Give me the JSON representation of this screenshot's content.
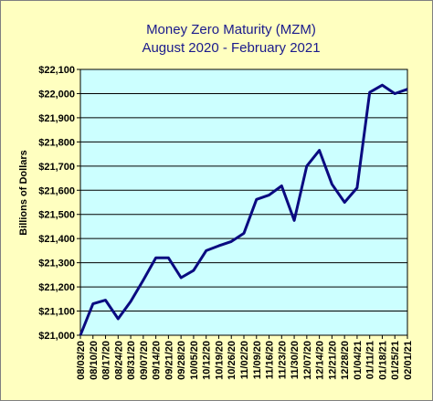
{
  "chart_data": {
    "type": "line",
    "title": "Money Zero Maturity (MZM)",
    "subtitle": "August  2020 - February 2021",
    "xlabel": "",
    "ylabel": "Billions of Dollars",
    "ylim": [
      21000,
      22100
    ],
    "y_ticks": [
      "$21,000",
      "$21,100",
      "$21,200",
      "$21,300",
      "$21,400",
      "$21,500",
      "$21,600",
      "$21,700",
      "$21,800",
      "$21,900",
      "$22,000",
      "$22,100"
    ],
    "y_tick_values": [
      21000,
      21100,
      21200,
      21300,
      21400,
      21500,
      21600,
      21700,
      21800,
      21900,
      22000,
      22100
    ],
    "categories": [
      "08/03/20",
      "08/10/20",
      "08/17/20",
      "08/24/20",
      "08/31/20",
      "09/07/20",
      "09/14/20",
      "09/21/20",
      "09/28/20",
      "10/05/20",
      "10/12/20",
      "10/19/20",
      "10/26/20",
      "11/02/20",
      "11/09/20",
      "11/16/20",
      "11/23/20",
      "11/30/20",
      "12/07/20",
      "12/14/20",
      "12/21/20",
      "12/28/20",
      "01/04/21",
      "01/11/21",
      "01/18/21",
      "01/25/21",
      "02/01/21"
    ],
    "x": [
      0,
      1,
      2,
      3,
      4,
      5,
      6,
      7,
      8,
      9,
      10,
      11,
      12,
      13,
      14,
      15,
      16,
      17,
      18,
      19,
      20,
      21,
      22,
      23,
      24,
      25,
      26,
      27,
      28,
      29,
      30,
      31,
      32,
      33,
      34,
      35,
      36,
      37,
      38,
      39,
      40,
      41,
      42,
      43,
      44,
      45,
      46,
      47,
      48,
      49,
      50,
      51,
      52,
      53,
      54,
      55,
      56,
      57,
      58,
      59,
      60,
      61,
      62,
      63,
      64,
      65,
      66,
      67,
      68,
      69,
      70,
      71,
      72,
      73,
      74,
      75,
      76,
      77,
      78,
      79,
      80,
      81,
      82,
      83,
      84,
      85,
      86,
      87,
      88,
      89,
      90,
      91,
      92,
      93,
      94,
      95,
      96,
      97,
      98,
      99,
      100,
      101,
      102,
      103,
      104,
      105,
      106,
      107,
      108,
      109,
      110,
      111,
      112,
      113,
      114,
      115,
      116,
      117,
      118,
      119,
      120,
      121,
      122,
      123,
      124,
      125,
      126,
      127,
      128,
      129,
      130,
      131,
      132,
      133,
      134,
      135,
      136,
      137,
      138,
      139,
      140,
      141,
      142,
      143,
      144,
      145,
      146,
      147,
      148,
      149,
      150,
      151,
      152,
      153,
      154,
      155,
      156,
      157,
      158,
      159,
      160,
      161,
      162,
      163,
      164,
      165,
      166,
      167,
      168,
      169,
      170,
      171,
      172,
      173,
      174,
      175,
      176,
      177,
      178,
      179,
      180,
      181,
      182
    ],
    "series": [
      {
        "values": [
          21000,
          21130,
          21145,
          21068,
          21140,
          21228,
          21320,
          21320,
          21238,
          21268,
          21350,
          21370,
          21388,
          21422,
          21562,
          21580,
          21618,
          21475,
          21700,
          21765,
          21625,
          21550,
          21610,
          22005,
          22035,
          22000,
          22018
        ],
        "color": "#0a0a80"
      }
    ],
    "plot_background": "#ccffff",
    "frame_background": "#ffffc0",
    "grid": "horizontal",
    "legend": "none"
  }
}
